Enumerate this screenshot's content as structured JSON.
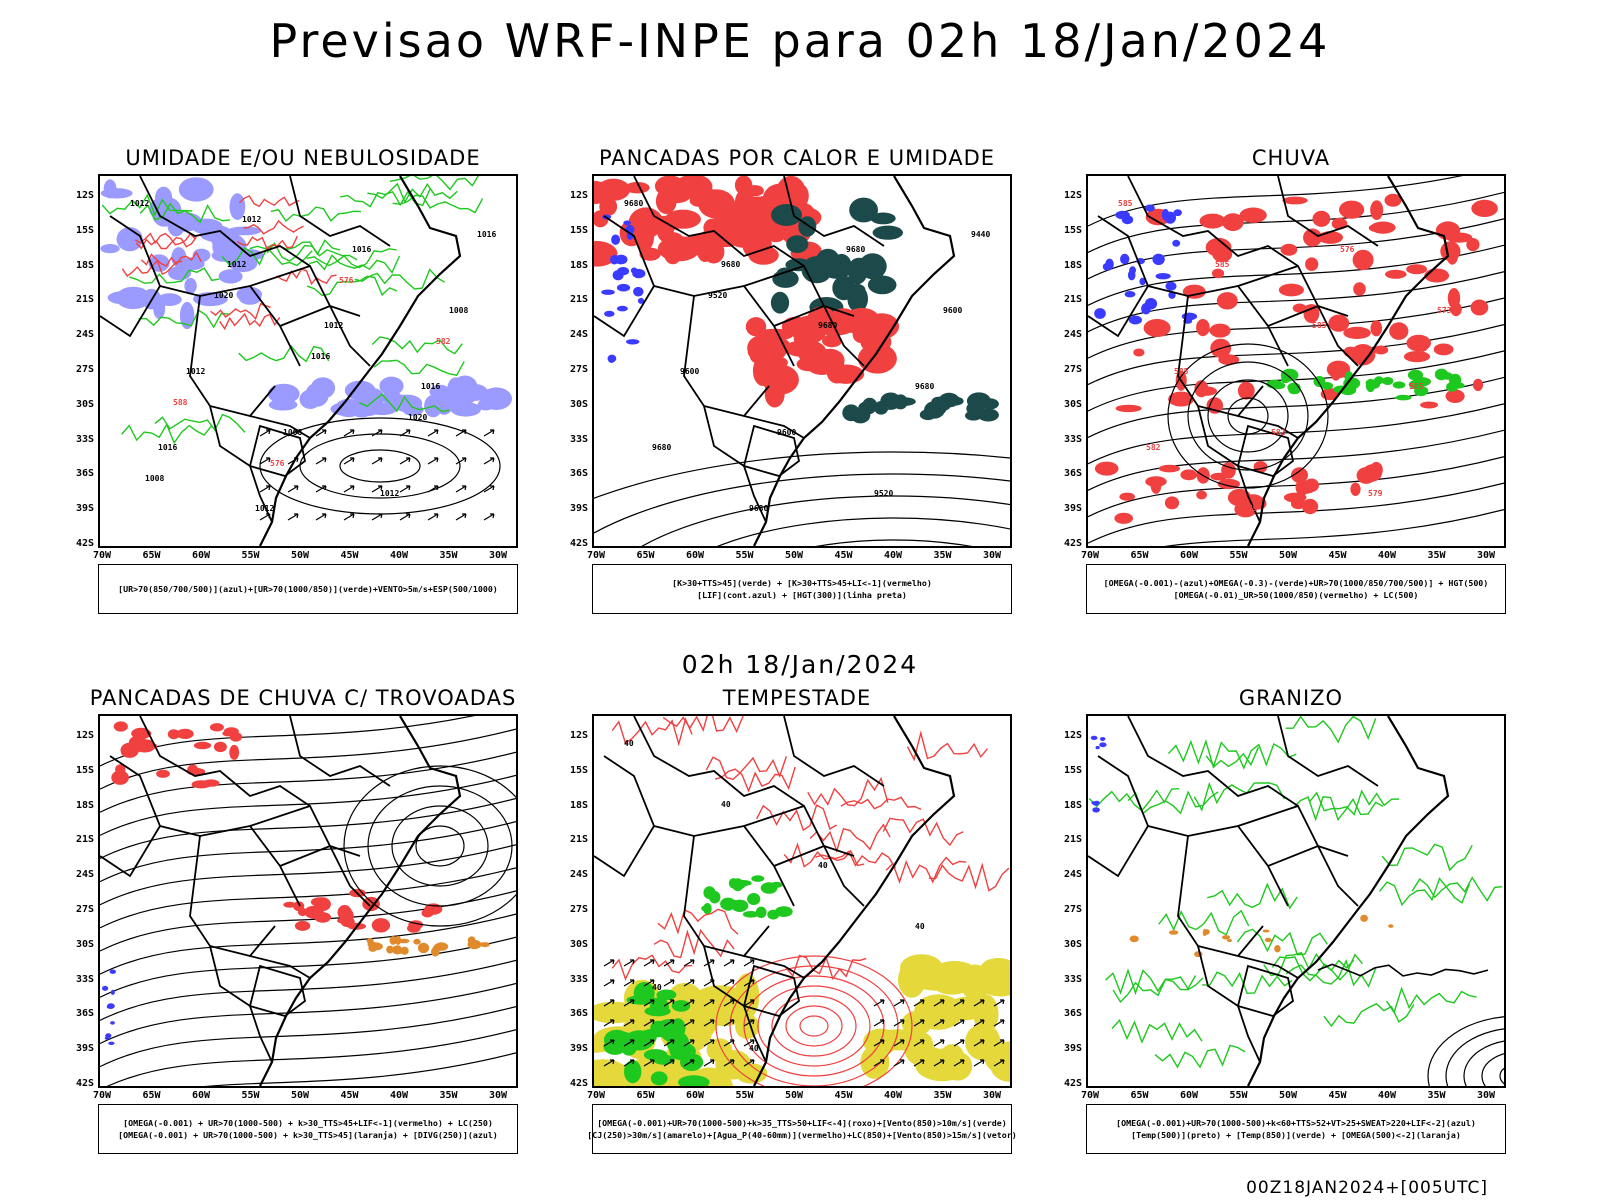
{
  "header": {
    "title": "Previsao WRF-INPE  para 02h 18/Jan/2024"
  },
  "mid_time": "02h 18/Jan/2024",
  "footer": "00Z18JAN2024+[005UTC]",
  "axes": {
    "lat_labels": [
      "12S",
      "15S",
      "18S",
      "21S",
      "24S",
      "27S",
      "30S",
      "33S",
      "36S",
      "39S",
      "42S"
    ],
    "lon_labels": [
      "70W",
      "65W",
      "60W",
      "55W",
      "50W",
      "45W",
      "40W",
      "35W",
      "30W"
    ]
  },
  "colors": {
    "blue": "#3b3bff",
    "lightblue": "#9a9aff",
    "green": "#1ec81e",
    "red": "#f04040",
    "darkteal": "#1c4a4a",
    "orange": "#e08a2c",
    "yellow": "#e4d83a",
    "black": "#000000"
  },
  "panels": [
    {
      "title": "UMIDADE E/OU NEBULOSIDADE",
      "legend": [
        "[UR>70(850/700/500)](azul)+[UR>70(1000/850)](verde)+VENTO>5m/s+ESP(500/1000)"
      ],
      "contour_labels": [
        "1012",
        "1012",
        "1012",
        "1016",
        "1016",
        "1012",
        "1016",
        "1008",
        "1012",
        "1008",
        "1012",
        "1016",
        "1020",
        "1016",
        "1020",
        "1008",
        "1012",
        "576",
        "582",
        "588",
        "576"
      ]
    },
    {
      "title": "PANCADAS POR CALOR E UMIDADE",
      "legend": [
        "[K>30+TTS>45](verde)  +  [K>30+TTS>45+LI<-1](vermelho)",
        "[LIF](cont.azul)  +  [HGT(300)](linha preta)"
      ],
      "contour_labels": [
        "9680",
        "9680",
        "9680",
        "9680",
        "9680",
        "9680",
        "9680",
        "9600",
        "9600",
        "9600",
        "9520",
        "9440",
        "9520"
      ]
    },
    {
      "title": "CHUVA",
      "legend": [
        "[OMEGA(-0.001)-(azul)+OMEGA(-0.3)-(verde)+UR>70(1000/850/700/500)]  +  HGT(500)",
        "[OMEGA(-0.01)_UR>50(1000/850)(vermelho)  +  LC(500)"
      ],
      "contour_labels": [
        "585",
        "585",
        "585",
        "585",
        "582",
        "579",
        "576",
        "573",
        "585",
        "582",
        "579"
      ]
    },
    {
      "title": "PANCADAS DE CHUVA C/ TROVOADAS",
      "legend": [
        "[OMEGA(-0.001)  +  UR>70(1000-500)  +  k>30_TTS>45+LIF<-1](vermelho)  +  LC(250)",
        "[OMEGA(-0.001)  +  UR>70(1000-500)  +  k>30_TTS>45](laranja)  +  [DIVG(250)](azul)"
      ],
      "contour_labels": []
    },
    {
      "title": "TEMPESTADE",
      "legend": [
        "[OMEGA(-0.001)+UR>70(1000-500)+k>35_TTS>50+LIF<-4](roxo)+[Vento(850)>10m/s](verde)",
        "[CJ(250)>30m/s](amarelo)+[Agua_P(40-60mm)](vermelho)+LC(850)+[Vento(850)>15m/s](vetor)"
      ],
      "contour_labels": [
        "40",
        "40",
        "40",
        "40",
        "40",
        "40"
      ]
    },
    {
      "title": "GRANIZO",
      "legend": [
        "[OMEGA(-0.001)+UR>70(1000-500)+k<60+TTS>52+VT>25+SWEAT>220+LIF<-2](azul)",
        "[Temp(500)](preto)  +  [Temp(850)](verde)  +  [OMEGA(500)<-2](laranja)"
      ],
      "contour_labels": []
    }
  ]
}
